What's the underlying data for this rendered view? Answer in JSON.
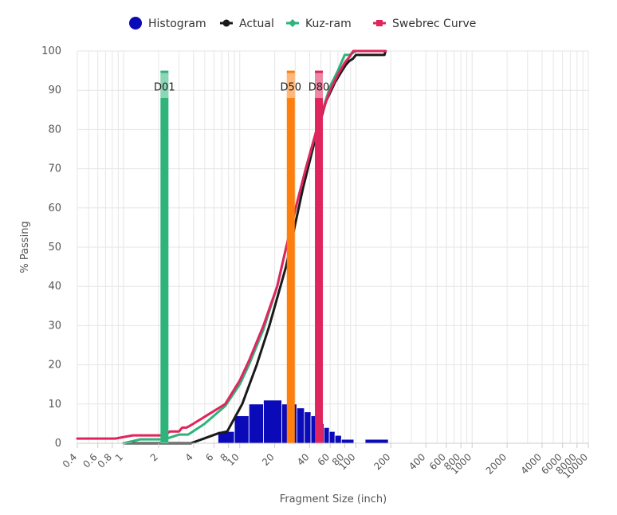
{
  "chart_data": {
    "type": "line",
    "xscale": "log",
    "xlabel": "Fragment Size (inch)",
    "ylabel": "% Passing",
    "ylim": [
      0,
      100
    ],
    "yticks": [
      0,
      10,
      20,
      30,
      40,
      50,
      60,
      70,
      80,
      90,
      100
    ],
    "xlim": [
      0.4,
      10000
    ],
    "xticks": [
      0.4,
      0.6,
      0.8,
      1,
      2,
      4,
      6,
      8,
      10,
      20,
      40,
      60,
      80,
      100,
      200,
      400,
      600,
      800,
      1000,
      2000,
      4000,
      6000,
      8000,
      10000
    ],
    "xtick_labels": [
      "0.4",
      "0.6",
      "0.8",
      "1",
      "2",
      "4",
      "6",
      "8",
      "10",
      "20",
      "40",
      "60",
      "80",
      "100",
      "200",
      "400",
      "600",
      "800",
      "1000",
      "2000",
      "4000",
      "6000",
      "8000",
      "10000"
    ],
    "grid": true,
    "legend_position": "top-center",
    "legend": [
      {
        "name": "Histogram",
        "color": "#0a0ab8",
        "marker": "circle"
      },
      {
        "name": "Actual",
        "color": "#1a1a1a",
        "marker": "line-dot"
      },
      {
        "name": "Kuz-ram",
        "color": "#2eb37a",
        "marker": "line-diamond"
      },
      {
        "name": "Swebrec Curve",
        "color": "#e0245e",
        "marker": "line-square"
      }
    ],
    "histogram": {
      "color": "#0a0ab8",
      "bins": [
        {
          "x0": 6.5,
          "x1": 9,
          "y": 3
        },
        {
          "x0": 9,
          "x1": 12,
          "y": 7
        },
        {
          "x0": 12,
          "x1": 16,
          "y": 10
        },
        {
          "x0": 16,
          "x1": 23,
          "y": 11
        },
        {
          "x0": 23,
          "x1": 31,
          "y": 10
        },
        {
          "x0": 31,
          "x1": 36,
          "y": 9
        },
        {
          "x0": 36,
          "x1": 41,
          "y": 8
        },
        {
          "x0": 41,
          "x1": 47,
          "y": 7
        },
        {
          "x0": 47,
          "x1": 53,
          "y": 5
        },
        {
          "x0": 53,
          "x1": 59,
          "y": 4
        },
        {
          "x0": 59,
          "x1": 66,
          "y": 3
        },
        {
          "x0": 66,
          "x1": 75,
          "y": 2
        },
        {
          "x0": 75,
          "x1": 96,
          "y": 1
        },
        {
          "x0": 120,
          "x1": 190,
          "y": 1
        }
      ]
    },
    "series": [
      {
        "name": "Actual",
        "color": "#1a1a1a",
        "points": [
          [
            1,
            0
          ],
          [
            3.8,
            0
          ],
          [
            6.5,
            2.5
          ],
          [
            7.8,
            3
          ],
          [
            10.5,
            10
          ],
          [
            14,
            20
          ],
          [
            18,
            30
          ],
          [
            25,
            45
          ],
          [
            35,
            65
          ],
          [
            45,
            78
          ],
          [
            55,
            87
          ],
          [
            66,
            92
          ],
          [
            76,
            95
          ],
          [
            82,
            96.5
          ],
          [
            88,
            97.5
          ],
          [
            94,
            98
          ],
          [
            100,
            99
          ],
          [
            176,
            99
          ],
          [
            180,
            100
          ]
        ]
      },
      {
        "name": "Kuz-ram",
        "color": "#2eb37a",
        "points": [
          [
            1,
            0
          ],
          [
            1.4,
            1
          ],
          [
            2.25,
            1
          ],
          [
            3,
            2.2
          ],
          [
            3.6,
            2.2
          ],
          [
            5,
            5
          ],
          [
            7.5,
            9.5
          ],
          [
            10,
            15
          ],
          [
            12,
            20
          ],
          [
            16,
            29
          ],
          [
            21,
            40
          ],
          [
            28,
            56
          ],
          [
            37,
            70
          ],
          [
            48,
            82
          ],
          [
            60,
            91
          ],
          [
            70,
            95
          ],
          [
            80,
            99
          ],
          [
            88,
            99
          ],
          [
            100,
            100
          ],
          [
            180,
            100
          ]
        ]
      },
      {
        "name": "Swebrec Curve",
        "color": "#e0245e",
        "points": [
          [
            0.4,
            1.2
          ],
          [
            0.85,
            1.2
          ],
          [
            1.2,
            2
          ],
          [
            2.25,
            2
          ],
          [
            2.5,
            3
          ],
          [
            3,
            3
          ],
          [
            3.2,
            4
          ],
          [
            3.5,
            4
          ],
          [
            4,
            5
          ],
          [
            7.5,
            10
          ],
          [
            10,
            16
          ],
          [
            12,
            21
          ],
          [
            16,
            30
          ],
          [
            21,
            40
          ],
          [
            28,
            56
          ],
          [
            37,
            70
          ],
          [
            48,
            82
          ],
          [
            60,
            90
          ],
          [
            70,
            94
          ],
          [
            80,
            97
          ],
          [
            88,
            98.5
          ],
          [
            95,
            100
          ],
          [
            180,
            100
          ]
        ]
      }
    ],
    "markers": [
      {
        "label": "D01",
        "x": 2.25,
        "color": "#2eb37a"
      },
      {
        "label": "D50",
        "x": 27.5,
        "color": "#ff7f0e"
      },
      {
        "label": "D80",
        "x": 48,
        "color": "#e0245e"
      }
    ]
  }
}
